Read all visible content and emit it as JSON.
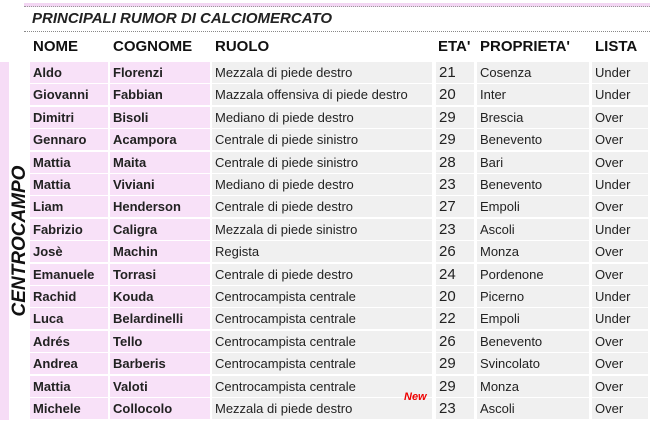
{
  "title": "PRINCIPALI RUMOR DI CALCIOMERCATO",
  "section": "CENTROCAMPO",
  "headers": [
    "NOME",
    "COGNOME",
    "RUOLO",
    "ETA'",
    "PROPRIETA'",
    "LISTA"
  ],
  "badge": "New",
  "rows": [
    [
      "Aldo",
      "Florenzi",
      "Mezzala di piede destro",
      "21",
      "Cosenza",
      "Under"
    ],
    [
      "Giovanni",
      "Fabbian",
      "Mazzala offensiva di piede destro",
      "20",
      "Inter",
      "Under"
    ],
    [
      "Dimitri",
      "Bisoli",
      "Mediano di piede destro",
      "29",
      "Brescia",
      "Over"
    ],
    [
      "Gennaro",
      "Acampora",
      "Centrale di piede sinistro",
      "29",
      "Benevento",
      "Over"
    ],
    [
      "Mattia",
      "Maita",
      "Centrale di piede sinistro",
      "28",
      "Bari",
      "Over"
    ],
    [
      "Mattia",
      "Viviani",
      "Mediano di piede destro",
      "23",
      "Benevento",
      "Under"
    ],
    [
      "Liam",
      "Henderson",
      "Centrale di piede destro",
      "27",
      "Empoli",
      "Over"
    ],
    [
      "Fabrizio",
      "Caligra",
      "Mezzala di piede sinistro",
      "23",
      "Ascoli",
      "Under"
    ],
    [
      "Josè",
      "Machin",
      "Regista",
      "26",
      "Monza",
      "Over"
    ],
    [
      "Emanuele",
      "Torrasi",
      "Centrale di piede destro",
      "24",
      "Pordenone",
      "Over"
    ],
    [
      "Rachid",
      "Kouda",
      "Centrocampista centrale",
      "20",
      "Picerno",
      "Under"
    ],
    [
      "Luca",
      "Belardinelli",
      "Centrocampista centrale",
      "22",
      "Empoli",
      "Under"
    ],
    [
      "Adrés",
      "Tello",
      "Centrocampista centrale",
      "26",
      "Benevento",
      "Over"
    ],
    [
      "Andrea",
      "Barberis",
      "Centrocampista centrale",
      "29",
      "Svincolato",
      "Over"
    ],
    [
      "Mattia",
      "Valoti",
      "Centrocampista centrale",
      "29",
      "Monza",
      "Over"
    ],
    [
      "Michele",
      "Collocolo",
      "Mezzala di piede destro",
      "23",
      "Ascoli",
      "Over"
    ]
  ]
}
